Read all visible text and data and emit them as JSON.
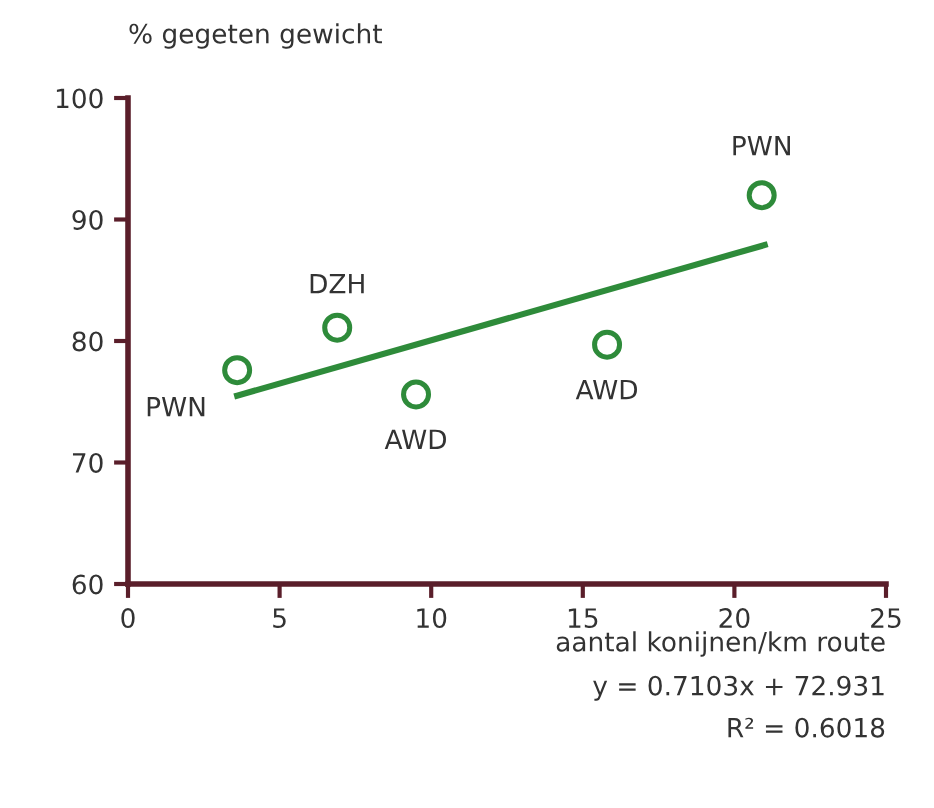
{
  "chart_data": {
    "type": "scatter",
    "ylabel": "% gegeten gewicht",
    "xlabel": "aantal konijnen/km route",
    "series": [
      {
        "color": "#2e8b3a",
        "marker": "circle",
        "x": [
          3.6,
          6.9,
          9.5,
          15.8,
          20.9
        ],
        "values": [
          77.6,
          81.1,
          75.6,
          79.7,
          92.0
        ]
      },
      {
        "type": "line",
        "color": "#2e8b3a",
        "marker": "none",
        "x": [
          3.6,
          21.0
        ],
        "values": [
          75.5,
          87.9
        ]
      }
    ],
    "xlim": [
      0,
      25
    ],
    "xticks": [
      0,
      5,
      10,
      15,
      20,
      25
    ],
    "ylim": [
      60,
      100
    ],
    "yticks": [
      60,
      70,
      80,
      90,
      100
    ],
    "grid": false,
    "annotations": [
      {
        "text": "PWN",
        "x": 3.6,
        "y": 77.6
      },
      {
        "text": "DZH",
        "x": 6.9,
        "y": 81.1
      },
      {
        "text": "AWD",
        "x": 9.5,
        "y": 75.6
      },
      {
        "text": "AWD",
        "x": 15.8,
        "y": 79.7
      },
      {
        "text": "PWN",
        "x": 20.9,
        "y": 92.0
      },
      "y = 0.7103x + 72.931",
      "R² = 0.6018"
    ]
  }
}
